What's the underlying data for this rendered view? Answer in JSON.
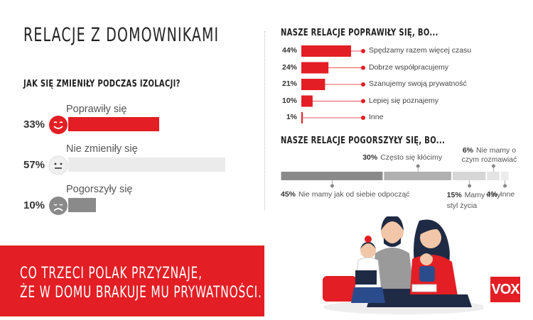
{
  "title": "RELACJE Z DOMOWNIKAMI",
  "left_question": "JAK SIĘ ZMIENIŁY PODCZAS IZOLACJI?",
  "right_top_question": "NASZE RELACJE POPRAWIŁY SIĘ, BO...",
  "right_bottom_question": "NASZE RELACJE POGORSZYŁY SIĘ, BO...",
  "banner": {
    "line1": "CO TRZECI POLAK PRZYZNAJE,",
    "line2": "ŻE W DOMU BRAKUJE MU PRYWATNOŚCI."
  },
  "logo": "VOX",
  "colors": {
    "red": "#e31e24",
    "grey_light": "#ebebeb",
    "grey_dark": "#8a8a8a",
    "mid_grey": "#b0b0b0",
    "pale_grey": "#d6d6d6"
  },
  "chart_data": [
    {
      "type": "bar",
      "title": "JAK SIĘ ZMIENIŁY PODCZAS IZOLACJI?",
      "categories": [
        "Poprawiły się",
        "Nie zmieniły się",
        "Pogorszyły się"
      ],
      "values": [
        33,
        57,
        10
      ],
      "value_labels": [
        "33%",
        "57%",
        "10%"
      ],
      "icons": [
        "happy-face-icon",
        "neutral-face-icon",
        "sad-face-icon"
      ]
    },
    {
      "type": "bar",
      "title": "NASZE RELACJE POPRAWIŁY SIĘ, BO...",
      "categories": [
        "Spędzamy razem więcej czasu",
        "Dobrze współpracujemy",
        "Szanujemy swoją prywatność",
        "Lepiej się poznajemy",
        "Inne"
      ],
      "values": [
        44,
        24,
        21,
        10,
        1
      ],
      "value_labels": [
        "44%",
        "24%",
        "21%",
        "10%",
        "1%"
      ]
    },
    {
      "type": "bar",
      "title": "NASZE RELACJE POGORSZYŁY SIĘ, BO...",
      "stacked": true,
      "categories": [
        "Nie mamy jak od siebie odpocząć",
        "Często się kłócimy",
        "Mamy inny styl życia",
        "Nie mamy o czym rozmawiać",
        "Inne"
      ],
      "values": [
        45,
        30,
        15,
        6,
        4
      ],
      "value_labels": [
        "45%",
        "30%",
        "15%",
        "6%",
        "4%"
      ]
    }
  ]
}
